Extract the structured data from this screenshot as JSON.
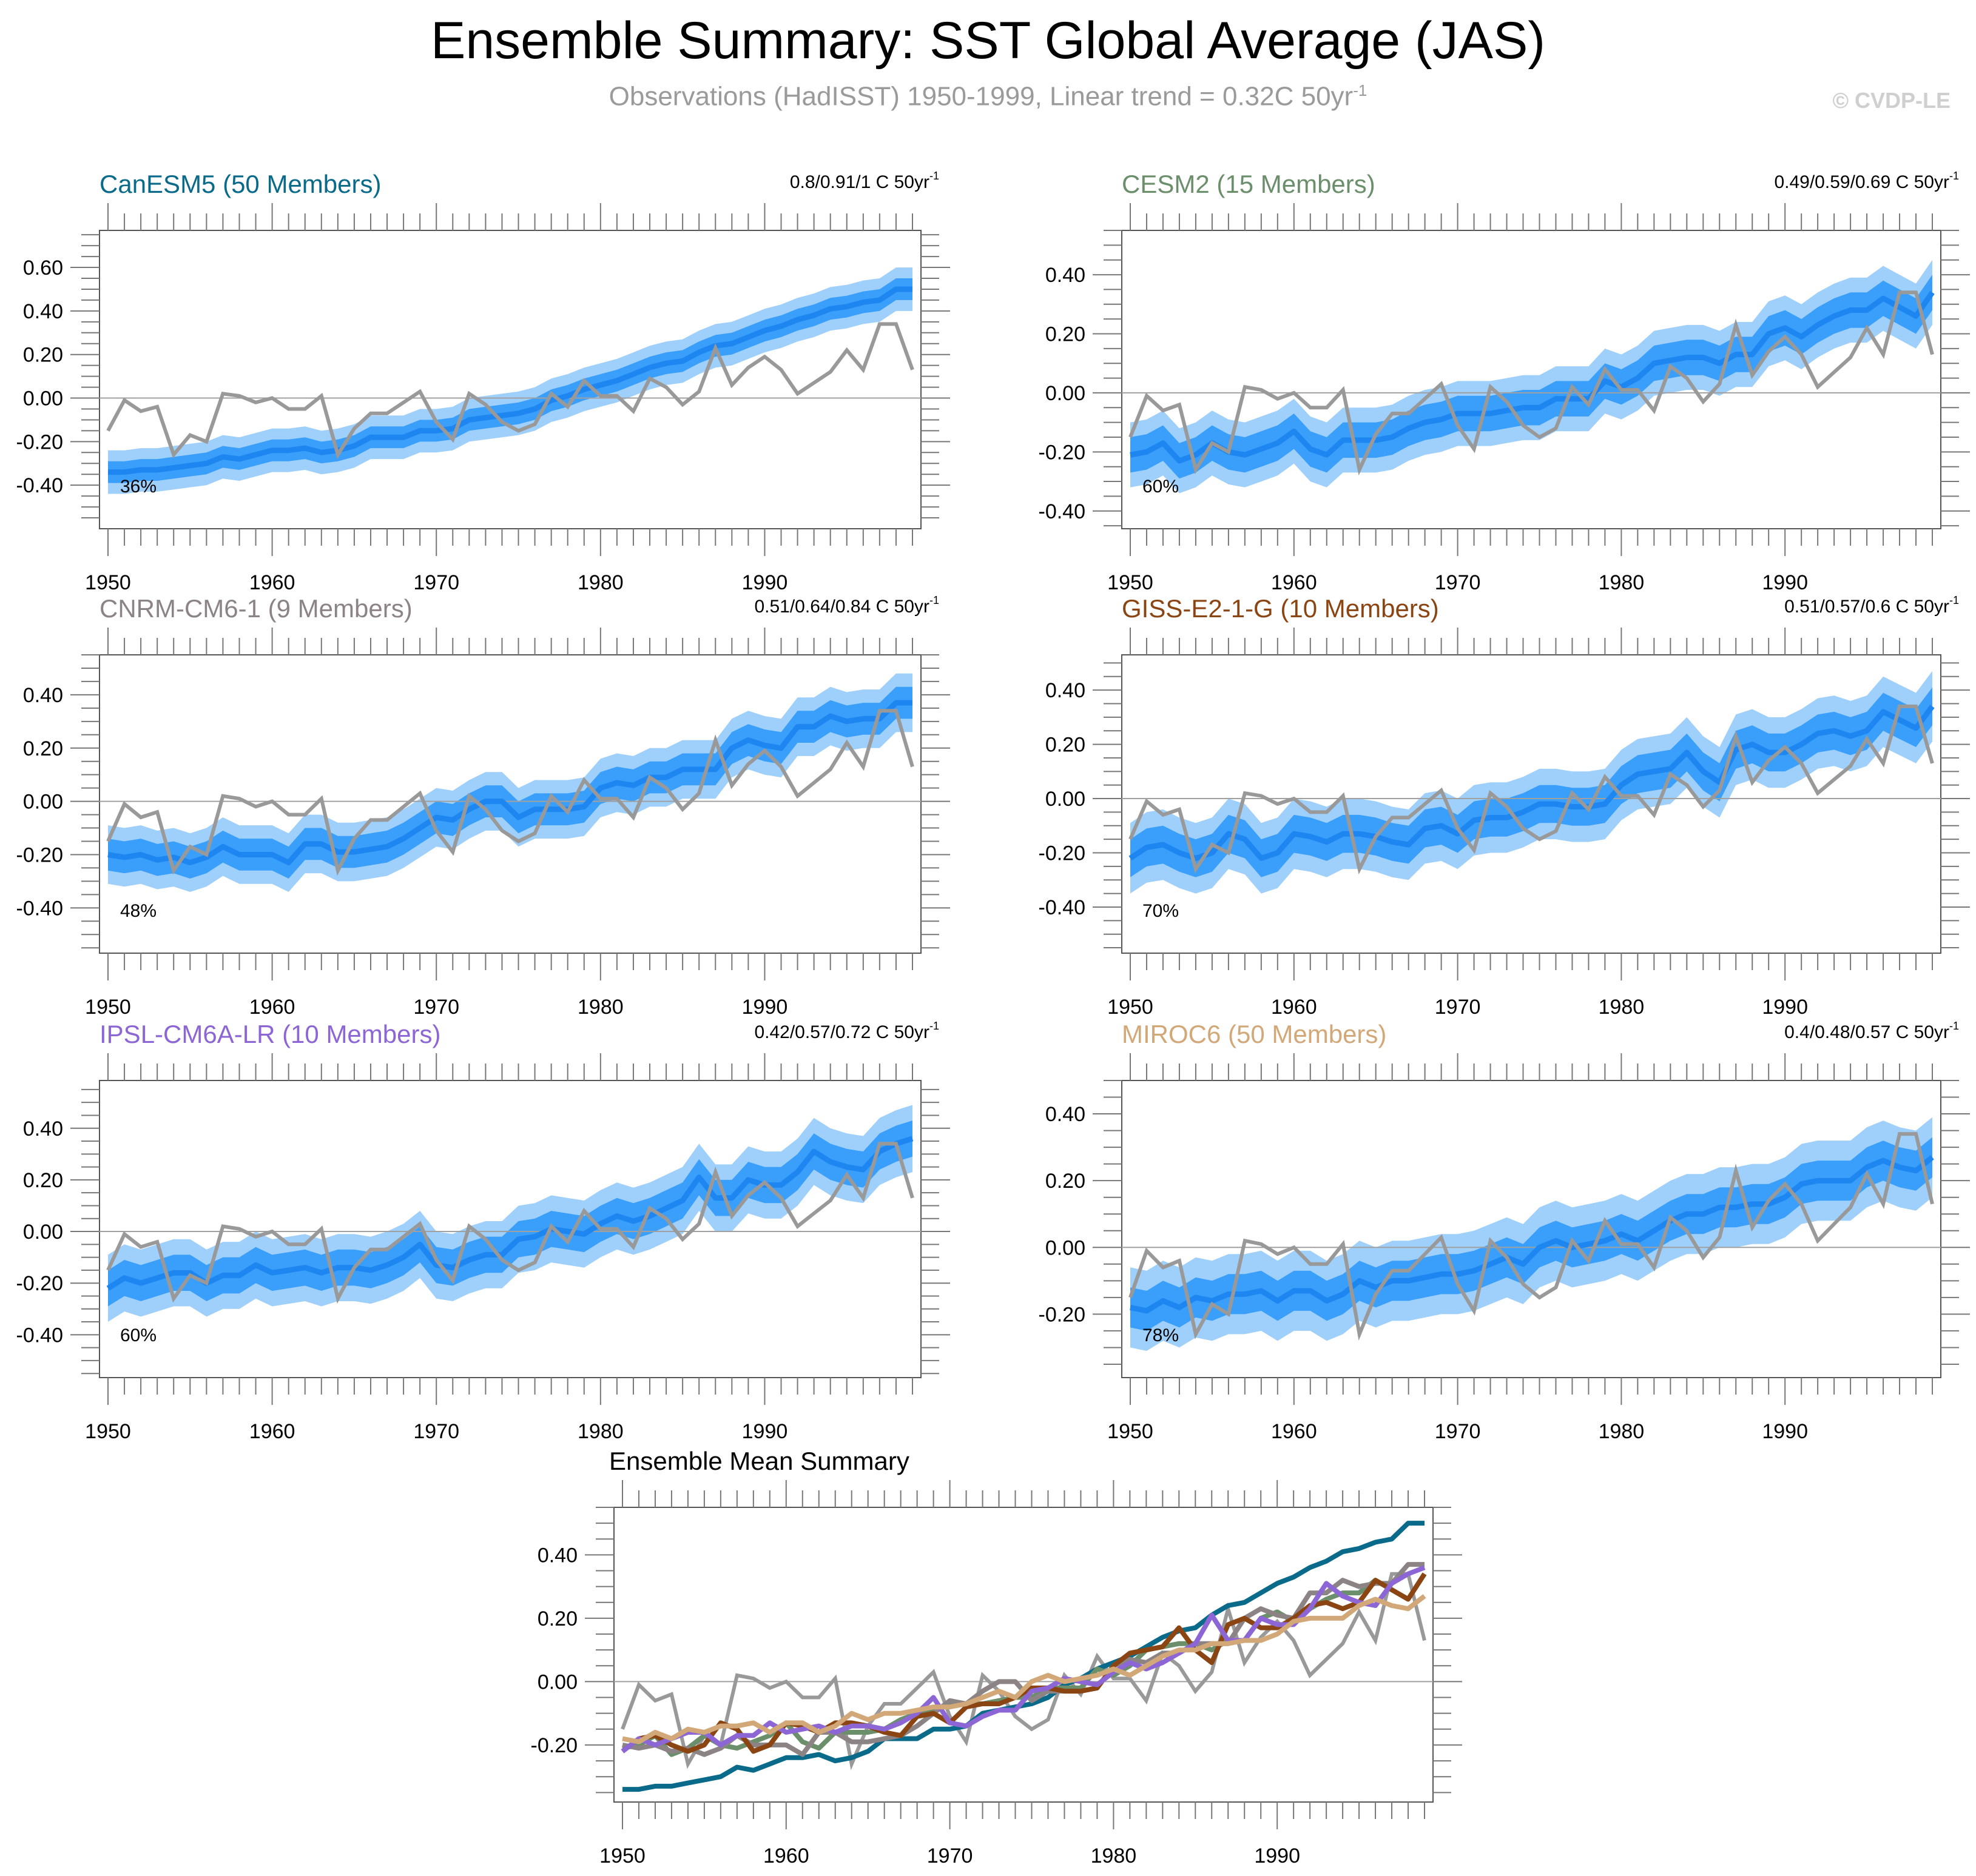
{
  "title": "Ensemble Summary: SST Global Average (JAS)",
  "subtitle": "Observations (HadISST) 1950-1999, Linear trend = 0.32C 50yr",
  "subtitle_sup": "-1",
  "copyright": "© CVDP-LE",
  "colors": {
    "band_outer": "#9fd0fb",
    "band_inner": "#3a9ffb",
    "ens_mean": "#1e86f0",
    "obs": "#999999",
    "zero_line": "#a0a0a0",
    "axis": "#555555"
  },
  "chart_data": [
    {
      "type": "line",
      "title": "CanESM5 (50 Members)",
      "title_color": "#0a6a8a",
      "stat_text": "0.8/0.91/1 C 50yr",
      "percent_label": "36%",
      "x": [
        1950,
        1951,
        1952,
        1953,
        1954,
        1955,
        1956,
        1957,
        1958,
        1959,
        1960,
        1961,
        1962,
        1963,
        1964,
        1965,
        1966,
        1967,
        1968,
        1969,
        1970,
        1971,
        1972,
        1973,
        1974,
        1975,
        1976,
        1977,
        1978,
        1979,
        1980,
        1981,
        1982,
        1983,
        1984,
        1985,
        1986,
        1987,
        1988,
        1989,
        1990,
        1991,
        1992,
        1993,
        1994,
        1995,
        1996,
        1997,
        1998,
        1999
      ],
      "ylim": [
        -0.6,
        0.77
      ],
      "yticks": [
        "0.60",
        "0.40",
        "0.20",
        "0.00",
        "-0.20",
        "-0.40"
      ],
      "ytick_values": [
        0.6,
        0.4,
        0.2,
        0.0,
        -0.2,
        -0.4
      ],
      "xticks": [
        "1950",
        "1960",
        "1970",
        "1980",
        "1990"
      ],
      "series": [
        {
          "name": "Ensemble mean",
          "values": [
            -0.34,
            -0.34,
            -0.33,
            -0.33,
            -0.32,
            -0.31,
            -0.3,
            -0.27,
            -0.28,
            -0.26,
            -0.24,
            -0.24,
            -0.23,
            -0.25,
            -0.24,
            -0.22,
            -0.18,
            -0.18,
            -0.18,
            -0.15,
            -0.15,
            -0.14,
            -0.1,
            -0.09,
            -0.08,
            -0.07,
            -0.05,
            -0.01,
            0.01,
            0.04,
            0.06,
            0.08,
            0.11,
            0.14,
            0.16,
            0.17,
            0.21,
            0.24,
            0.25,
            0.28,
            0.31,
            0.33,
            0.36,
            0.38,
            0.41,
            0.42,
            0.44,
            0.45,
            0.5,
            0.5
          ]
        }
      ],
      "band_inner_halfwidth": 0.05,
      "band_outer_halfwidth": 0.1
    },
    {
      "type": "line",
      "title": "CESM2 (15 Members)",
      "title_color": "#6b8e6b",
      "stat_text": "0.49/0.59/0.69 C 50yr",
      "percent_label": "60%",
      "ylim": [
        -0.46,
        0.55
      ],
      "yticks": [
        "0.40",
        "0.20",
        "0.00",
        "-0.20",
        "-0.40"
      ],
      "ytick_values": [
        0.4,
        0.2,
        0.0,
        -0.2,
        -0.4
      ],
      "xticks": [
        "1950",
        "1960",
        "1970",
        "1980",
        "1990"
      ],
      "series": [
        {
          "name": "Ensemble mean",
          "values": [
            -0.21,
            -0.2,
            -0.17,
            -0.23,
            -0.21,
            -0.17,
            -0.2,
            -0.21,
            -0.19,
            -0.17,
            -0.13,
            -0.19,
            -0.21,
            -0.16,
            -0.16,
            -0.16,
            -0.15,
            -0.12,
            -0.1,
            -0.09,
            -0.07,
            -0.07,
            -0.07,
            -0.06,
            -0.05,
            -0.05,
            -0.02,
            -0.02,
            -0.02,
            0.04,
            0.02,
            0.05,
            0.1,
            0.11,
            0.12,
            0.12,
            0.1,
            0.13,
            0.13,
            0.2,
            0.22,
            0.19,
            0.23,
            0.26,
            0.28,
            0.28,
            0.32,
            0.29,
            0.26,
            0.34
          ]
        }
      ],
      "band_inner_halfwidth": 0.06,
      "band_outer_halfwidth": 0.11
    },
    {
      "type": "line",
      "title": "CNRM-CM6-1 (9 Members)",
      "title_color": "#8c8484",
      "stat_text": "0.51/0.64/0.84 C 50yr",
      "percent_label": "48%",
      "ylim": [
        -0.57,
        0.55
      ],
      "yticks": [
        "0.40",
        "0.20",
        "0.00",
        "-0.20",
        "-0.40"
      ],
      "ytick_values": [
        0.4,
        0.2,
        0.0,
        -0.2,
        -0.4
      ],
      "xticks": [
        "1950",
        "1960",
        "1970",
        "1980",
        "1990"
      ],
      "series": [
        {
          "name": "Ensemble mean",
          "values": [
            -0.2,
            -0.21,
            -0.2,
            -0.22,
            -0.21,
            -0.23,
            -0.21,
            -0.17,
            -0.2,
            -0.2,
            -0.2,
            -0.23,
            -0.16,
            -0.16,
            -0.19,
            -0.19,
            -0.18,
            -0.17,
            -0.14,
            -0.1,
            -0.06,
            -0.07,
            -0.03,
            0.0,
            0.0,
            -0.06,
            -0.03,
            -0.03,
            -0.03,
            -0.02,
            0.05,
            0.07,
            0.06,
            0.09,
            0.09,
            0.12,
            0.12,
            0.12,
            0.2,
            0.23,
            0.21,
            0.2,
            0.28,
            0.28,
            0.32,
            0.3,
            0.31,
            0.31,
            0.37,
            0.37
          ]
        }
      ],
      "band_inner_halfwidth": 0.06,
      "band_outer_halfwidth": 0.11
    },
    {
      "type": "line",
      "title": "GISS-E2-1-G (10 Members)",
      "title_color": "#8b4513",
      "stat_text": "0.51/0.57/0.6 C 50yr",
      "percent_label": "70%",
      "ylim": [
        -0.57,
        0.53
      ],
      "yticks": [
        "0.40",
        "0.20",
        "0.00",
        "-0.20",
        "-0.40"
      ],
      "ytick_values": [
        0.4,
        0.2,
        0.0,
        -0.2,
        -0.4
      ],
      "xticks": [
        "1950",
        "1960",
        "1970",
        "1980",
        "1990"
      ],
      "series": [
        {
          "name": "Ensemble mean",
          "values": [
            -0.22,
            -0.18,
            -0.17,
            -0.2,
            -0.22,
            -0.2,
            -0.13,
            -0.15,
            -0.22,
            -0.2,
            -0.13,
            -0.14,
            -0.16,
            -0.13,
            -0.13,
            -0.14,
            -0.16,
            -0.17,
            -0.11,
            -0.1,
            -0.13,
            -0.08,
            -0.07,
            -0.07,
            -0.05,
            -0.02,
            -0.02,
            -0.03,
            -0.03,
            -0.02,
            0.05,
            0.09,
            0.1,
            0.11,
            0.17,
            0.1,
            0.06,
            0.18,
            0.2,
            0.17,
            0.17,
            0.2,
            0.24,
            0.25,
            0.23,
            0.25,
            0.32,
            0.29,
            0.26,
            0.34
          ]
        }
      ],
      "band_inner_halfwidth": 0.07,
      "band_outer_halfwidth": 0.13
    },
    {
      "type": "line",
      "title": "IPSL-CM6A-LR (10 Members)",
      "title_color": "#8d66d6",
      "stat_text": "0.42/0.57/0.72 C 50yr",
      "percent_label": "60%",
      "ylim": [
        -0.566,
        0.585
      ],
      "yticks": [
        "0.40",
        "0.20",
        "0.00",
        "-0.20",
        "-0.40"
      ],
      "ytick_values": [
        0.4,
        0.2,
        0.0,
        -0.2,
        -0.4
      ],
      "xticks": [
        "1950",
        "1960",
        "1970",
        "1980",
        "1990"
      ],
      "series": [
        {
          "name": "Ensemble mean",
          "values": [
            -0.22,
            -0.18,
            -0.2,
            -0.18,
            -0.16,
            -0.16,
            -0.2,
            -0.17,
            -0.17,
            -0.13,
            -0.16,
            -0.15,
            -0.14,
            -0.16,
            -0.14,
            -0.14,
            -0.15,
            -0.13,
            -0.1,
            -0.05,
            -0.13,
            -0.14,
            -0.11,
            -0.09,
            -0.09,
            -0.03,
            -0.02,
            0.01,
            0.0,
            -0.01,
            0.03,
            0.06,
            0.04,
            0.06,
            0.09,
            0.12,
            0.21,
            0.13,
            0.13,
            0.2,
            0.18,
            0.18,
            0.23,
            0.31,
            0.27,
            0.25,
            0.24,
            0.31,
            0.34,
            0.36
          ]
        }
      ],
      "band_inner_halfwidth": 0.07,
      "band_outer_halfwidth": 0.13
    },
    {
      "type": "line",
      "title": "MIROC6 (50 Members)",
      "title_color": "#d2a878",
      "stat_text": "0.4/0.48/0.57 C 50yr",
      "percent_label": "78%",
      "ylim": [
        -0.39,
        0.5
      ],
      "yticks": [
        "0.40",
        "0.20",
        "0.00",
        "-0.20"
      ],
      "ytick_values": [
        0.4,
        0.2,
        0.0,
        -0.2
      ],
      "xticks": [
        "1950",
        "1960",
        "1970",
        "1980",
        "1990"
      ],
      "series": [
        {
          "name": "Ensemble mean",
          "values": [
            -0.18,
            -0.19,
            -0.16,
            -0.18,
            -0.15,
            -0.16,
            -0.14,
            -0.14,
            -0.13,
            -0.16,
            -0.13,
            -0.13,
            -0.16,
            -0.14,
            -0.1,
            -0.12,
            -0.1,
            -0.1,
            -0.09,
            -0.08,
            -0.08,
            -0.07,
            -0.05,
            -0.03,
            -0.05,
            0.0,
            0.02,
            0.0,
            0.01,
            0.02,
            0.04,
            0.02,
            0.05,
            0.08,
            0.1,
            0.1,
            0.12,
            0.12,
            0.13,
            0.13,
            0.15,
            0.19,
            0.2,
            0.2,
            0.2,
            0.24,
            0.26,
            0.24,
            0.23,
            0.27
          ]
        }
      ],
      "band_inner_halfwidth": 0.06,
      "band_outer_halfwidth": 0.12
    }
  ],
  "observations": {
    "name": "HadISST",
    "values": [
      -0.15,
      -0.01,
      -0.06,
      -0.04,
      -0.26,
      -0.17,
      -0.2,
      0.02,
      0.01,
      -0.02,
      0.0,
      -0.05,
      -0.05,
      0.01,
      -0.26,
      -0.14,
      -0.07,
      -0.07,
      -0.02,
      0.03,
      -0.11,
      -0.19,
      0.02,
      -0.03,
      -0.11,
      -0.15,
      -0.12,
      0.02,
      -0.04,
      0.08,
      0.01,
      0.01,
      -0.06,
      0.09,
      0.05,
      -0.03,
      0.03,
      0.23,
      0.06,
      0.14,
      0.19,
      0.13,
      0.02,
      0.07,
      0.12,
      0.22,
      0.13,
      0.34,
      0.34,
      0.13
    ]
  },
  "summary": {
    "title": "Ensemble Mean Summary",
    "ylim": [
      -0.38,
      0.55
    ],
    "yticks": [
      "0.40",
      "0.20",
      "0.00",
      "-0.20"
    ],
    "ytick_values": [
      0.4,
      0.2,
      0.0,
      -0.2
    ],
    "xticks": [
      "1950",
      "1960",
      "1970",
      "1980",
      "1990"
    ]
  }
}
